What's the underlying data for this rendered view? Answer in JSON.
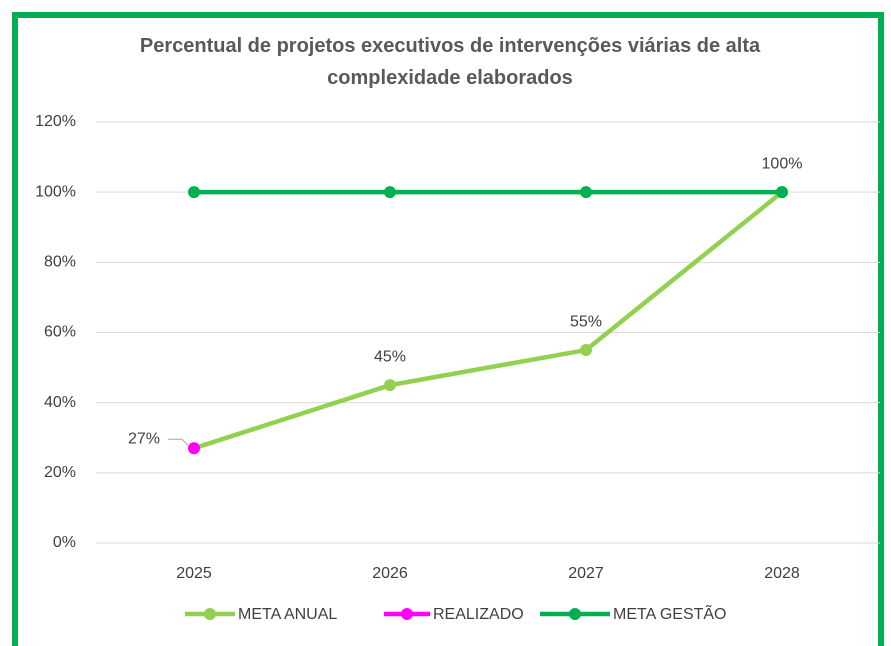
{
  "chart_data": {
    "type": "line",
    "title": "Percentual de projetos executivos de intervenções viárias de alta complexidade elaborados",
    "categories": [
      "2025",
      "2026",
      "2027",
      "2028"
    ],
    "series": [
      {
        "name": "META ANUAL",
        "color": "#92d050",
        "values": [
          27,
          45,
          55,
          100
        ],
        "value_labels": [
          null,
          "45%",
          "55%",
          "100%"
        ]
      },
      {
        "name": "REALIZADO",
        "color": "#ff00ff",
        "values": [
          27,
          null,
          null,
          null
        ],
        "value_labels": [
          "27%",
          null,
          null,
          null
        ]
      },
      {
        "name": "META GESTÃO",
        "color": "#00b050",
        "values": [
          100,
          100,
          100,
          100
        ]
      }
    ],
    "ylim": [
      0,
      120
    ],
    "yticks": [
      {
        "value": 0,
        "label": "0%"
      },
      {
        "value": 20,
        "label": "20%"
      },
      {
        "value": 40,
        "label": "40%"
      },
      {
        "value": 60,
        "label": "60%"
      },
      {
        "value": 80,
        "label": "80%"
      },
      {
        "value": 100,
        "label": "100%"
      },
      {
        "value": 120,
        "label": "120%"
      }
    ],
    "grid": true,
    "legend": "bottom"
  }
}
